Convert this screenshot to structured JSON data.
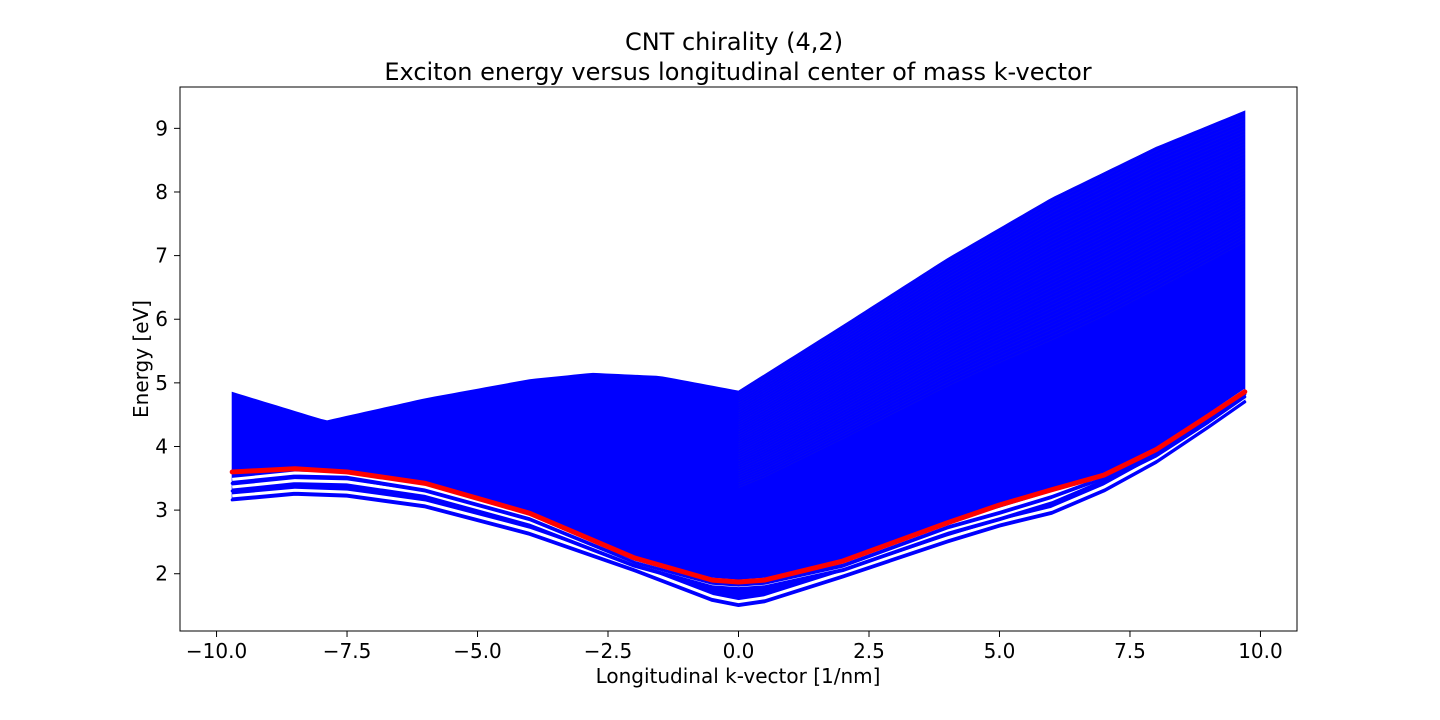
{
  "chart_data": {
    "type": "line",
    "title": "CNT chirality (4,2)",
    "subtitle": "Exciton energy versus longitudinal center of mass k-vector",
    "xlabel": "Longitudinal k-vector [1/nm]",
    "ylabel": "Energy [eV]",
    "xlim": [
      -10.7,
      10.7
    ],
    "ylim": [
      1.1,
      9.65
    ],
    "xticks": [
      -10.0,
      -7.5,
      -5.0,
      -2.5,
      0.0,
      2.5,
      5.0,
      7.5,
      10.0
    ],
    "xtick_labels": [
      "−10.0",
      "−7.5",
      "−5.0",
      "−2.5",
      "0.0",
      "2.5",
      "5.0",
      "7.5",
      "10.0"
    ],
    "yticks": [
      2,
      3,
      4,
      5,
      6,
      7,
      8,
      9
    ],
    "ytick_labels": [
      "2",
      "3",
      "4",
      "5",
      "6",
      "7",
      "8",
      "9"
    ],
    "grid": false,
    "legend": "none",
    "colors": {
      "band": "#0000ff",
      "highlight": "#ff0000"
    },
    "band_fill": {
      "x": [
        -9.7,
        -8.5,
        -7.9,
        -6.0,
        -4.0,
        -2.8,
        -1.5,
        0.0,
        2.0,
        4.0,
        6.0,
        8.0,
        9.7
      ],
      "top": [
        4.85,
        4.55,
        4.4,
        4.75,
        5.05,
        5.15,
        5.1,
        4.87,
        5.9,
        6.95,
        7.9,
        8.7,
        9.27
      ],
      "bottom_curve": "lowest band"
    },
    "series": [
      {
        "x": [
          -9.7,
          -8.5,
          -7.5,
          -6.0,
          -4.0,
          -2.0,
          -0.5,
          0.0,
          0.5,
          2.0,
          4.0,
          5.0,
          6.0,
          7.0,
          8.0,
          9.0,
          9.7
        ],
        "values": [
          3.16,
          3.25,
          3.22,
          3.05,
          2.62,
          2.05,
          1.58,
          1.5,
          1.56,
          1.95,
          2.5,
          2.75,
          2.95,
          3.3,
          3.75,
          4.3,
          4.7
        ]
      },
      {
        "x": [
          -9.7,
          -8.5,
          -7.5,
          -6.0,
          -4.0,
          -2.0,
          -0.5,
          0.0,
          0.5,
          2.0,
          4.0,
          5.0,
          6.0,
          7.0,
          8.0,
          9.0,
          9.7
        ],
        "values": [
          3.3,
          3.4,
          3.38,
          3.2,
          2.75,
          2.12,
          1.78,
          1.75,
          1.78,
          2.05,
          2.62,
          2.85,
          3.1,
          3.45,
          3.85,
          4.38,
          4.78
        ]
      },
      {
        "x": [
          -9.7,
          -8.5,
          -7.5,
          -6.0,
          -4.0,
          -2.0,
          -0.5,
          0.0,
          0.5,
          2.0,
          4.0,
          5.0,
          6.0,
          7.0,
          8.0,
          9.0,
          9.7
        ],
        "values": [
          3.42,
          3.52,
          3.5,
          3.3,
          2.85,
          2.18,
          1.85,
          1.82,
          1.85,
          2.12,
          2.72,
          2.95,
          3.2,
          3.5,
          3.9,
          4.43,
          4.82
        ]
      },
      {
        "x": [
          -9.7,
          -8.5,
          -7.5,
          -6.0,
          -4.0,
          -2.0,
          -0.5,
          0.0,
          0.5,
          2.0,
          4.0,
          5.0,
          6.0,
          7.0,
          8.0,
          9.0,
          9.7
        ],
        "values": [
          3.6,
          3.65,
          3.6,
          3.42,
          2.95,
          2.25,
          1.9,
          1.87,
          1.9,
          2.2,
          2.8,
          3.08,
          3.32,
          3.55,
          3.95,
          4.48,
          4.86
        ],
        "highlight": true
      }
    ]
  }
}
